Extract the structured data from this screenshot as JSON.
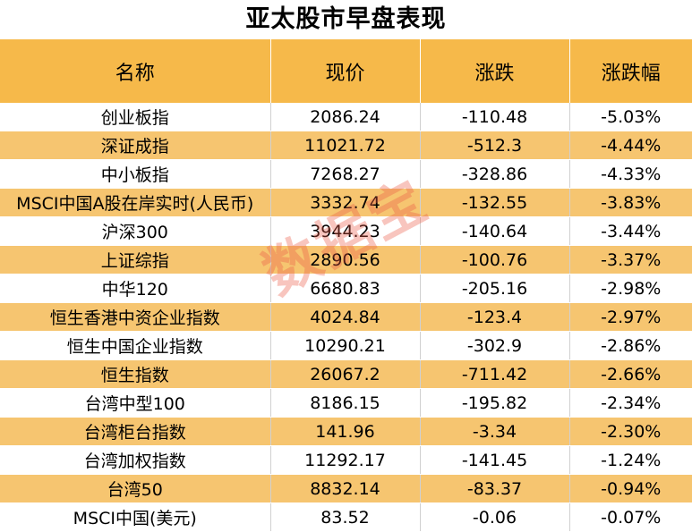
{
  "title": "亚太股市早盘表现",
  "headers": {
    "name": "名称",
    "price": "现价",
    "change": "涨跌",
    "pct": "涨跌幅"
  },
  "rows": [
    {
      "name": "创业板指",
      "price": "2086.24",
      "change": "-110.48",
      "pct": "-5.03%"
    },
    {
      "name": "深证成指",
      "price": "11021.72",
      "change": "-512.3",
      "pct": "-4.44%"
    },
    {
      "name": "中小板指",
      "price": "7268.27",
      "change": "-328.86",
      "pct": "-4.33%"
    },
    {
      "name": "MSCI中国A股在岸实时(人民币)",
      "price": "3332.74",
      "change": "-132.55",
      "pct": "-3.83%"
    },
    {
      "name": "沪深300",
      "price": "3944.23",
      "change": "-140.64",
      "pct": "-3.44%"
    },
    {
      "name": "上证综指",
      "price": "2890.56",
      "change": "-100.76",
      "pct": "-3.37%"
    },
    {
      "name": "中华120",
      "price": "6680.83",
      "change": "-205.16",
      "pct": "-2.98%"
    },
    {
      "name": "恒生香港中资企业指数",
      "price": "4024.84",
      "change": "-123.4",
      "pct": "-2.97%"
    },
    {
      "name": "恒生中国企业指数",
      "price": "10290.21",
      "change": "-302.9",
      "pct": "-2.86%"
    },
    {
      "name": "恒生指数",
      "price": "26067.2",
      "change": "-711.42",
      "pct": "-2.66%"
    },
    {
      "name": "台湾中型100",
      "price": "8186.15",
      "change": "-195.82",
      "pct": "-2.34%"
    },
    {
      "name": "台湾柜台指数",
      "price": "141.96",
      "change": "-3.34",
      "pct": "-2.30%"
    },
    {
      "name": "台湾加权指数",
      "price": "11292.17",
      "change": "-141.45",
      "pct": "-1.24%"
    },
    {
      "name": "台湾50",
      "price": "8832.14",
      "change": "-83.37",
      "pct": "-0.94%"
    },
    {
      "name": "MSCI中国(美元)",
      "price": "83.52",
      "change": "-0.06",
      "pct": "-0.07%"
    }
  ],
  "watermark": "数据宝"
}
